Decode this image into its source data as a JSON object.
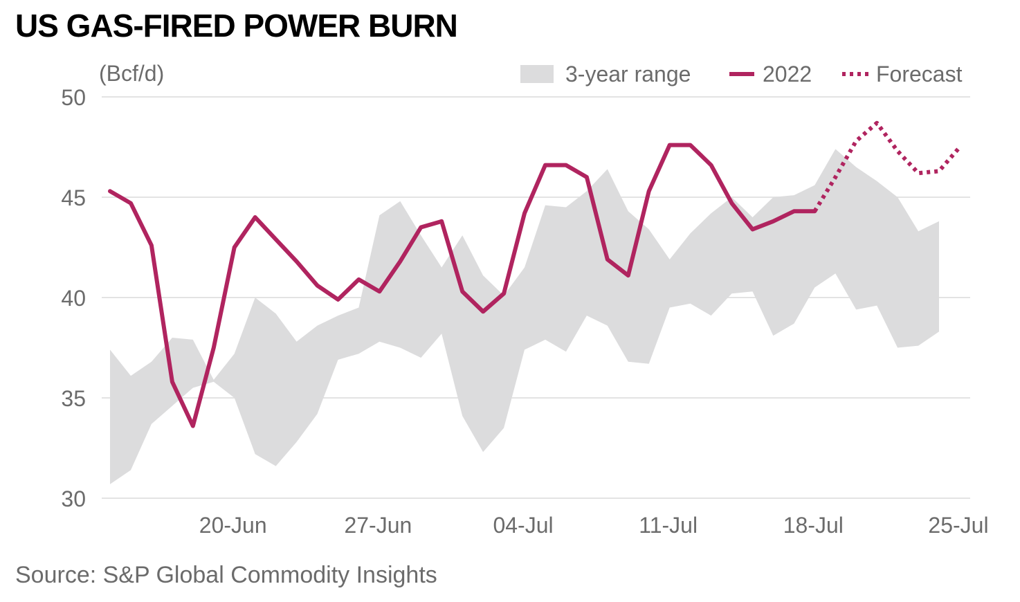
{
  "title": "US GAS-FIRED POWER BURN",
  "source": "Source: S&P Global Commodity Insights",
  "colors": {
    "series_2022": "#b0245f",
    "forecast": "#b0245f",
    "range_fill": "#dcdcdd",
    "grid": "#e3e3e3",
    "text": "#6b6b6b"
  },
  "chart_data": {
    "type": "line",
    "unit_label": "(Bcf/d)",
    "y_ticks": [
      30,
      35,
      40,
      45,
      50
    ],
    "ylim": [
      30,
      50
    ],
    "x_tick_labels": [
      {
        "label": "20-Jun",
        "x": 6
      },
      {
        "label": "27-Jun",
        "x": 13
      },
      {
        "label": "04-Jul",
        "x": 20
      },
      {
        "label": "11-Jul",
        "x": 27
      },
      {
        "label": "18-Jul",
        "x": 34
      },
      {
        "label": "25-Jul",
        "x": 41
      }
    ],
    "xlim": [
      0,
      41
    ],
    "legend": {
      "position": "top-right",
      "items": [
        {
          "label": "3-year range",
          "style": "area"
        },
        {
          "label": "2022",
          "style": "solid"
        },
        {
          "label": "Forecast",
          "style": "dotted"
        }
      ]
    },
    "range_upper": [
      37.4,
      36.1,
      36.8,
      38.0,
      37.9,
      35.9,
      37.2,
      40.0,
      39.2,
      37.8,
      38.6,
      39.1,
      39.5,
      44.1,
      44.8,
      43.1,
      41.5,
      43.1,
      41.1,
      40.1,
      41.5,
      44.6,
      44.5,
      45.3,
      46.4,
      44.3,
      43.4,
      41.9,
      43.2,
      44.2,
      45.0,
      44.0,
      45.0,
      45.1,
      45.6,
      47.4,
      46.5,
      45.8,
      45.0,
      43.3,
      43.8
    ],
    "range_lower": [
      30.7,
      31.4,
      33.7,
      34.6,
      35.5,
      35.8,
      35.0,
      32.2,
      31.6,
      32.8,
      34.2,
      36.9,
      37.2,
      37.8,
      37.5,
      37.0,
      38.2,
      34.1,
      32.3,
      33.5,
      37.4,
      37.9,
      37.3,
      39.1,
      38.6,
      36.8,
      36.7,
      39.5,
      39.7,
      39.1,
      40.2,
      40.3,
      38.1,
      38.7,
      40.5,
      41.2,
      39.4,
      39.6,
      37.5,
      37.6,
      38.3
    ],
    "series": [
      {
        "name": "2022",
        "x": [
          0,
          1,
          2,
          3,
          4,
          5,
          6,
          7,
          8,
          9,
          10,
          11,
          12,
          13,
          14,
          15,
          16,
          17,
          18,
          19,
          20,
          21,
          22,
          23,
          24,
          25,
          26,
          27,
          28,
          29,
          30,
          31,
          32,
          33,
          34
        ],
        "values": [
          45.3,
          44.7,
          42.6,
          35.8,
          33.6,
          37.5,
          42.5,
          44.0,
          42.9,
          41.8,
          40.6,
          39.9,
          40.9,
          40.3,
          41.8,
          43.5,
          43.8,
          40.3,
          39.3,
          40.2,
          44.2,
          46.6,
          46.6,
          46.0,
          41.9,
          41.1,
          45.3,
          47.6,
          47.6,
          46.6,
          44.7,
          43.4,
          43.8,
          44.3,
          44.3
        ]
      },
      {
        "name": "Forecast",
        "x": [
          34,
          35,
          36,
          37,
          38,
          39,
          40,
          41
        ],
        "values": [
          44.3,
          46.0,
          47.8,
          48.7,
          47.3,
          46.2,
          46.3,
          47.5
        ]
      }
    ]
  }
}
